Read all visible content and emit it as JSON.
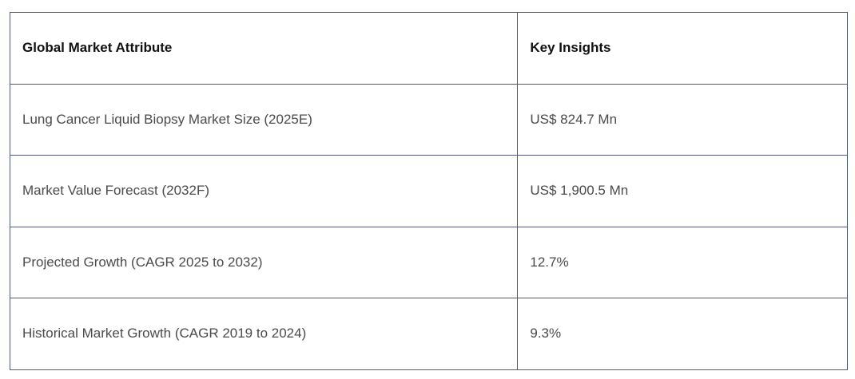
{
  "table": {
    "headers": [
      "Global Market Attribute",
      "Key Insights"
    ],
    "rows": [
      [
        "Lung Cancer Liquid Biopsy Market Size (2025E)",
        "US$ 824.7 Mn"
      ],
      [
        "Market Value Forecast (2032F)",
        "US$ 1,900.5 Mn"
      ],
      [
        "Projected Growth (CAGR 2025 to 2032)",
        "12.7%"
      ],
      [
        "Historical Market Growth (CAGR 2019 to 2024)",
        "9.3%"
      ]
    ]
  }
}
